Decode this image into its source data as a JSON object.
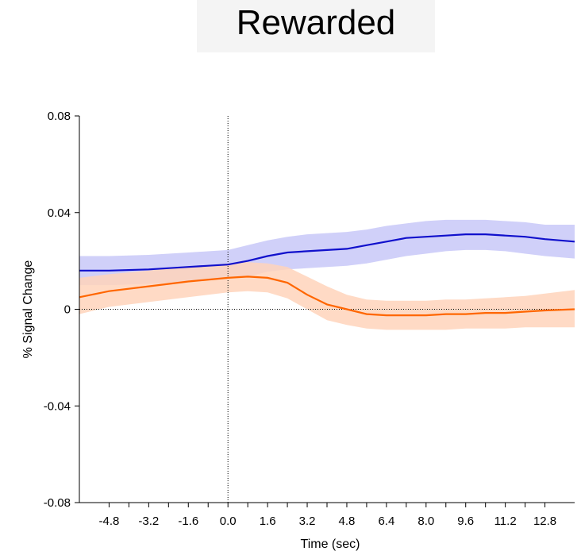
{
  "chart_data": {
    "type": "line",
    "title": "Rewarded",
    "xlabel": "Time (sec)",
    "ylabel": "% Signal Change",
    "xlim": [
      -6.0,
      14.0
    ],
    "ylim": [
      -0.08,
      0.08
    ],
    "x_ticks": [
      -4.8,
      -4.0,
      -3.2,
      -2.4,
      -1.6,
      -0.8,
      0.0,
      0.8,
      1.6,
      2.4,
      3.2,
      4.0,
      4.8,
      5.6,
      6.4,
      7.2,
      8.0,
      8.8,
      9.6,
      10.4,
      11.2,
      12.0,
      12.8
    ],
    "x_tick_labels": [
      "-4.8",
      "",
      "-3.2",
      "",
      "-1.6",
      "",
      "0.0",
      "",
      "1.6",
      "",
      "3.2",
      "",
      "4.8",
      "",
      "6.4",
      "",
      "8.0",
      "",
      "9.6",
      "",
      "11.2",
      "",
      "12.8"
    ],
    "y_ticks": [
      -0.08,
      -0.04,
      0,
      0.04,
      0.08
    ],
    "y_tick_labels": [
      "-0.08",
      "-0.04",
      "0",
      "0.04",
      "0.08"
    ],
    "reference_lines": {
      "x": 0,
      "y": 0,
      "style": "dotted"
    },
    "grid": false,
    "legend": "none",
    "series": [
      {
        "color": "#1010cc",
        "band_color": "#c8c8f8",
        "x": [
          -6.0,
          -4.8,
          -3.2,
          -1.6,
          0.0,
          0.8,
          1.6,
          2.4,
          3.2,
          4.0,
          4.8,
          5.6,
          6.4,
          7.2,
          8.0,
          8.8,
          9.6,
          10.4,
          11.2,
          12.0,
          12.8,
          14.0
        ],
        "values": [
          0.016,
          0.016,
          0.0165,
          0.0175,
          0.0185,
          0.02,
          0.022,
          0.0235,
          0.024,
          0.0245,
          0.025,
          0.0265,
          0.028,
          0.0295,
          0.03,
          0.0305,
          0.031,
          0.031,
          0.0305,
          0.03,
          0.029,
          0.028
        ],
        "upper": [
          0.022,
          0.022,
          0.0225,
          0.0235,
          0.0245,
          0.0265,
          0.0285,
          0.03,
          0.031,
          0.0315,
          0.032,
          0.033,
          0.0345,
          0.0355,
          0.0365,
          0.037,
          0.037,
          0.037,
          0.0365,
          0.036,
          0.035,
          0.035
        ],
        "lower": [
          0.01,
          0.01,
          0.0105,
          0.0115,
          0.0125,
          0.0135,
          0.0155,
          0.0165,
          0.017,
          0.0175,
          0.018,
          0.019,
          0.0205,
          0.022,
          0.023,
          0.024,
          0.0245,
          0.0245,
          0.024,
          0.023,
          0.022,
          0.021
        ]
      },
      {
        "color": "#ff6600",
        "band_color": "#ffd3bb",
        "x": [
          -6.0,
          -4.8,
          -3.2,
          -1.6,
          0.0,
          0.8,
          1.6,
          2.4,
          3.2,
          4.0,
          4.8,
          5.6,
          6.4,
          7.2,
          8.0,
          8.8,
          9.6,
          10.4,
          11.2,
          12.0,
          12.8,
          14.0
        ],
        "values": [
          0.005,
          0.0075,
          0.0095,
          0.0115,
          0.013,
          0.0135,
          0.013,
          0.011,
          0.006,
          0.002,
          0.0,
          -0.002,
          -0.0025,
          -0.0025,
          -0.0025,
          -0.002,
          -0.002,
          -0.0015,
          -0.0015,
          -0.001,
          -0.0005,
          0.0
        ],
        "upper": [
          0.013,
          0.0145,
          0.016,
          0.0175,
          0.019,
          0.0195,
          0.019,
          0.0175,
          0.0135,
          0.0095,
          0.006,
          0.004,
          0.0035,
          0.0035,
          0.0035,
          0.004,
          0.004,
          0.0045,
          0.005,
          0.0055,
          0.0065,
          0.008
        ],
        "lower": [
          -0.002,
          0.001,
          0.003,
          0.005,
          0.007,
          0.0075,
          0.007,
          0.0045,
          0.0,
          -0.0045,
          -0.0065,
          -0.008,
          -0.0085,
          -0.0085,
          -0.0085,
          -0.0085,
          -0.008,
          -0.008,
          -0.008,
          -0.0075,
          -0.0075,
          -0.0075
        ]
      }
    ]
  }
}
